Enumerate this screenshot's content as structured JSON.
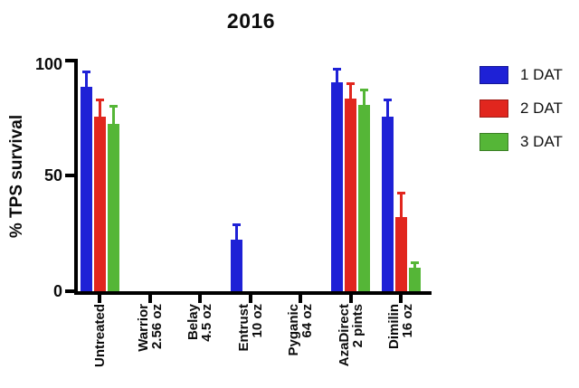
{
  "chart_data": {
    "type": "bar",
    "title": "2016",
    "ylabel": "% TPS survival",
    "ylim": [
      0,
      100
    ],
    "yticks": [
      0,
      50,
      100
    ],
    "grid": false,
    "legend_position": "right",
    "axis_color": "#000000",
    "categories": [
      {
        "lines": [
          "Untreated"
        ]
      },
      {
        "lines": [
          "Warrior",
          "2.56 oz"
        ]
      },
      {
        "lines": [
          "Belay",
          "4.5 oz"
        ]
      },
      {
        "lines": [
          "Entrust",
          "10 oz"
        ]
      },
      {
        "lines": [
          "Pyganic",
          "64 oz"
        ]
      },
      {
        "lines": [
          "AzaDirect",
          "2 pints"
        ]
      },
      {
        "lines": [
          "Dimilin",
          "16 oz"
        ]
      }
    ],
    "series": [
      {
        "name": "1 DAT",
        "color": "#1e21d6",
        "values": [
          88,
          0,
          0,
          22,
          0,
          90,
          75
        ],
        "errors": [
          7,
          0,
          0,
          7,
          0,
          6,
          8
        ]
      },
      {
        "name": "2 DAT",
        "color": "#e1261e",
        "values": [
          75,
          0,
          0,
          0,
          0,
          83,
          32
        ],
        "errors": [
          8,
          0,
          0,
          0,
          0,
          7,
          11
        ]
      },
      {
        "name": "3 DAT",
        "color": "#55b637",
        "values": [
          72,
          0,
          0,
          0,
          0,
          80,
          10
        ],
        "errors": [
          8,
          0,
          0,
          0,
          0,
          7,
          3
        ]
      }
    ]
  }
}
